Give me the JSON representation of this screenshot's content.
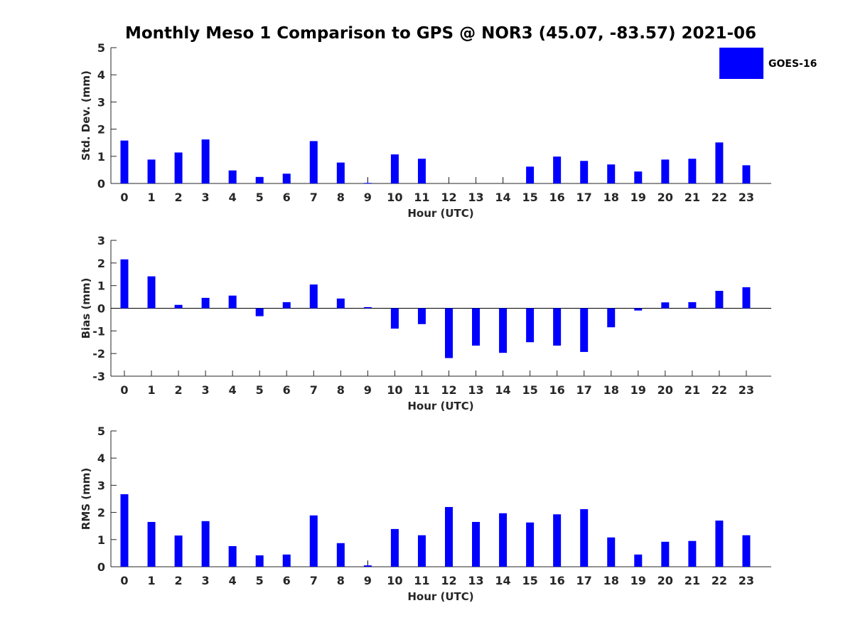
{
  "chart_data": {
    "type": "bar",
    "title": "Monthly Meso 1 Comparison to GPS @ NOR3 (45.07, -83.57) 2021-06",
    "bar_color": "#0000ff",
    "legend": {
      "label": "GOES-16",
      "placement": "top-right"
    },
    "categories": [
      "0",
      "1",
      "2",
      "3",
      "4",
      "5",
      "6",
      "7",
      "8",
      "9",
      "10",
      "11",
      "12",
      "13",
      "14",
      "15",
      "16",
      "17",
      "18",
      "19",
      "20",
      "21",
      "22",
      "23"
    ],
    "subplots": [
      {
        "name": "std-dev",
        "ylabel": "Std. Dev. (mm)",
        "xlabel": "Hour (UTC)",
        "ylim": [
          0,
          5
        ],
        "yticks": [
          0,
          1,
          2,
          3,
          4,
          5
        ],
        "values": [
          1.58,
          0.88,
          1.14,
          1.62,
          0.48,
          0.24,
          0.36,
          1.56,
          0.77,
          0.02,
          1.07,
          0.91,
          null,
          null,
          null,
          0.62,
          0.99,
          0.83,
          0.7,
          0.44,
          0.88,
          0.91,
          1.51,
          0.67
        ],
        "error_ticks": [
          9,
          12,
          13,
          14
        ]
      },
      {
        "name": "bias",
        "ylabel": "Bias (mm)",
        "xlabel": "Hour (UTC)",
        "ylim": [
          -3,
          3
        ],
        "yticks": [
          -3,
          -2,
          -1,
          0,
          1,
          2,
          3
        ],
        "values": [
          2.16,
          1.41,
          0.15,
          0.46,
          0.56,
          -0.35,
          0.27,
          1.05,
          0.43,
          0.05,
          -0.9,
          -0.7,
          -2.2,
          -1.65,
          -1.97,
          -1.5,
          -1.65,
          -1.93,
          -0.84,
          -0.1,
          0.26,
          0.27,
          0.77,
          0.93
        ],
        "error_ticks": []
      },
      {
        "name": "rms",
        "ylabel": "RMS (mm)",
        "xlabel": "Hour (UTC)",
        "ylim": [
          0,
          5
        ],
        "yticks": [
          0,
          1,
          2,
          3,
          4,
          5
        ],
        "values": [
          2.67,
          1.65,
          1.15,
          1.68,
          0.76,
          0.42,
          0.45,
          1.89,
          0.87,
          0.05,
          1.39,
          1.16,
          2.2,
          1.65,
          1.97,
          1.63,
          1.93,
          2.12,
          1.08,
          0.45,
          0.92,
          0.95,
          1.7,
          1.16
        ],
        "error_ticks": [
          9
        ]
      }
    ]
  }
}
